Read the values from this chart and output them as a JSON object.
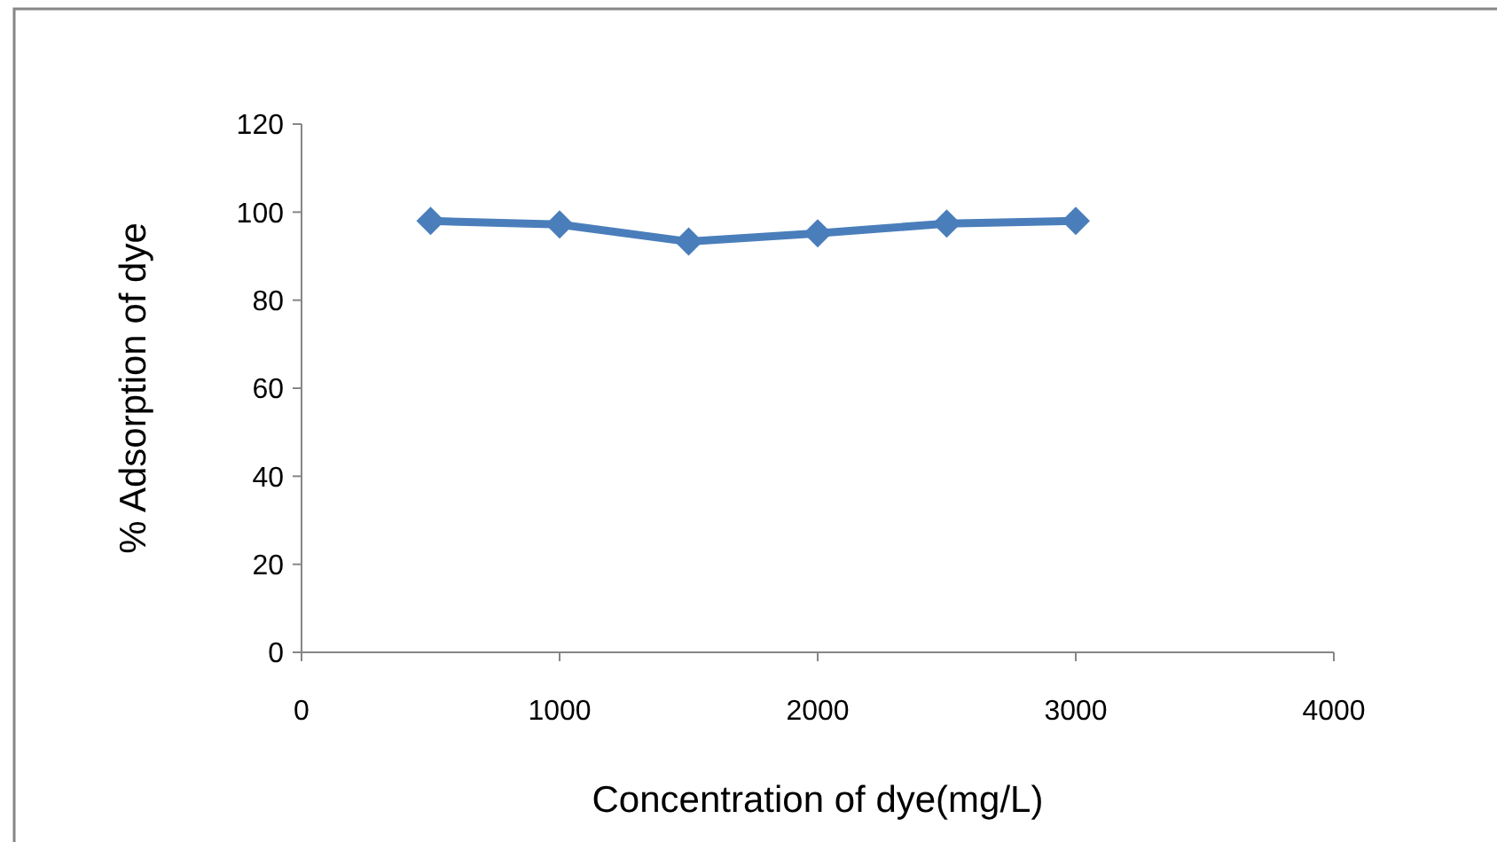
{
  "chart_data": {
    "type": "line",
    "xlabel": "Concentration of dye(mg/L)",
    "ylabel": "% Adsorption of dye",
    "x": [
      500,
      1000,
      1500,
      2000,
      2500,
      3000
    ],
    "series": [
      {
        "color": "#4a7ebb",
        "values": [
          98,
          97.2,
          93.3,
          95.2,
          97.4,
          98
        ]
      }
    ],
    "xlim": [
      0,
      4000
    ],
    "xticks": [
      0,
      1000,
      2000,
      3000,
      4000
    ],
    "ylim": [
      0,
      120
    ],
    "yticks": [
      0,
      20,
      40,
      60,
      80,
      100,
      120
    ],
    "marker": "diamond",
    "grid": false
  }
}
